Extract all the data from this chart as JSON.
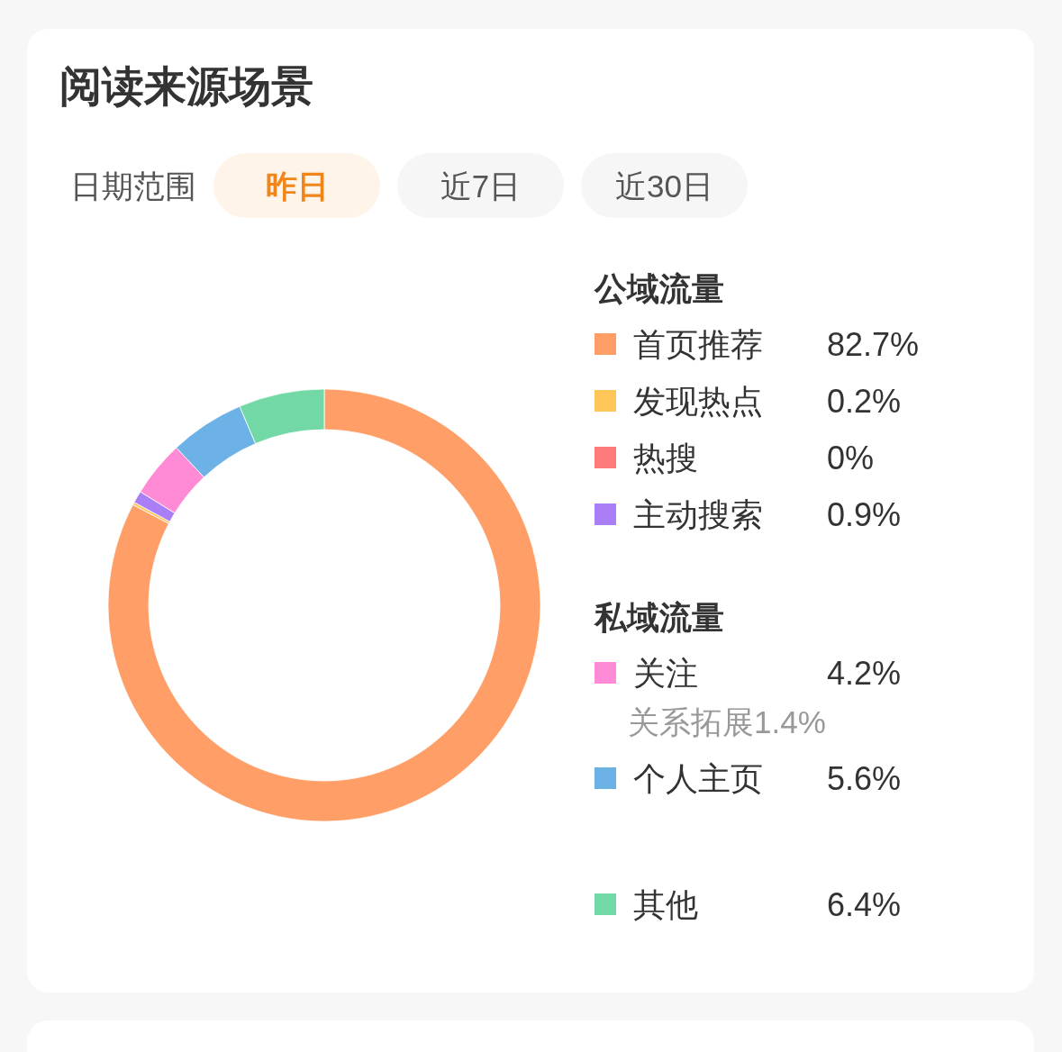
{
  "chart_data": {
    "type": "donut",
    "title": "阅读来源场景",
    "categories": [
      "首页推荐",
      "发现热点",
      "热搜",
      "主动搜索",
      "关注",
      "个人主页",
      "其他"
    ],
    "values": [
      82.7,
      0.2,
      0,
      0.9,
      4.2,
      5.6,
      6.4
    ],
    "colors": [
      "#ff9e66",
      "#ffc65a",
      "#ff7b7b",
      "#a97ef7",
      "#ff8ad6",
      "#6db2e6",
      "#72d9a6"
    ],
    "value_labels": [
      "82.7%",
      "0.2%",
      "0%",
      "0.9%",
      "4.2%",
      "5.6%",
      "6.4%"
    ],
    "legend": "right",
    "annotations": [
      "日期范围",
      "昨日",
      "近7日",
      "近30日",
      "公域流量",
      "私域流量",
      "关系拓展1.4%"
    ]
  }
}
